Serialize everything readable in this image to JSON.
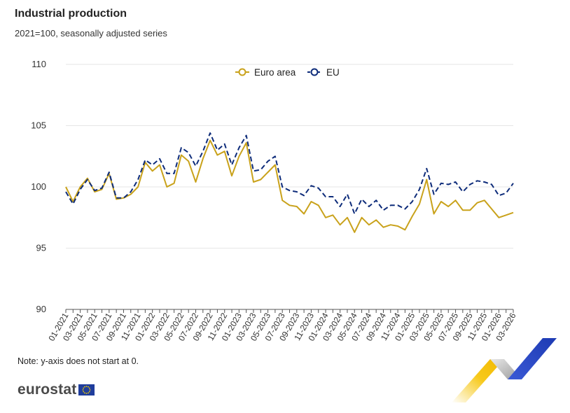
{
  "header": {
    "title": "Industrial production",
    "subtitle": "2021=100, seasonally adjusted series"
  },
  "footer": {
    "note": "Note: y-axis does not start at 0.",
    "brand": "eurostat"
  },
  "colors": {
    "euro_area": "#c9a21b",
    "eu": "#0e2c7a",
    "grid": "#e6e6e6",
    "axis": "#555555"
  },
  "icons": {
    "flag": "eu-flag-icon",
    "corner_decoration": "eurostat-chevron-decoration"
  },
  "chart_data": {
    "type": "line",
    "ylim": [
      90,
      110
    ],
    "y_ticks": [
      "90",
      "95",
      "100",
      "105",
      "110"
    ],
    "grid": true,
    "legend_position": "top-center",
    "x": [
      "01-2021",
      "02-2021",
      "03-2021",
      "04-2021",
      "05-2021",
      "06-2021",
      "07-2021",
      "08-2021",
      "09-2021",
      "10-2021",
      "11-2021",
      "12-2021",
      "01-2022",
      "02-2022",
      "03-2022",
      "04-2022",
      "05-2022",
      "06-2022",
      "07-2022",
      "08-2022",
      "09-2022",
      "10-2022",
      "11-2022",
      "12-2022",
      "01-2023",
      "02-2023",
      "03-2023",
      "04-2023",
      "05-2023",
      "06-2023",
      "07-2023",
      "08-2023",
      "09-2023",
      "10-2023",
      "11-2023",
      "12-2023",
      "01-2024",
      "02-2024",
      "03-2024",
      "04-2024",
      "05-2024",
      "06-2024",
      "07-2024",
      "08-2024",
      "09-2024",
      "10-2024",
      "11-2024",
      "12-2024",
      "01-2025",
      "02-2025",
      "03-2025",
      "04-2025",
      "05-2025",
      "06-2025",
      "07-2025",
      "08-2025",
      "09-2025",
      "10-2025",
      "11-2025",
      "12-2025",
      "01-2026",
      "02-2026",
      "03-2026"
    ],
    "x_tick_labels": [
      "01-2021",
      "03-2021",
      "05-2021",
      "07-2021",
      "09-2021",
      "11-2021",
      "01-2022",
      "03-2022",
      "05-2022",
      "07-2022",
      "09-2022",
      "11-2022",
      "01-2023",
      "03-2023",
      "05-2023",
      "07-2023",
      "09-2023",
      "11-2023",
      "01-2024",
      "03-2024",
      "05-2024",
      "07-2024",
      "09-2024",
      "11-2024",
      "01-2025",
      "03-2025",
      "05-2025",
      "07-2025",
      "09-2025",
      "11-2025",
      "01-2026",
      "03-2026"
    ],
    "series": [
      {
        "name": "Euro area",
        "style": "solid",
        "values": [
          100.0,
          98.8,
          100.0,
          100.7,
          99.6,
          99.8,
          101.1,
          99.0,
          99.1,
          99.4,
          100.0,
          102.0,
          101.3,
          101.8,
          100.0,
          100.3,
          102.6,
          102.1,
          100.4,
          102.3,
          103.8,
          102.6,
          102.9,
          100.9,
          102.5,
          103.6,
          100.4,
          100.6,
          101.2,
          101.8,
          98.9,
          98.5,
          98.4,
          97.8,
          98.8,
          98.5,
          97.5,
          97.7,
          96.9,
          97.5,
          96.3,
          97.5,
          96.9,
          97.3,
          96.7,
          96.9,
          96.8,
          96.5,
          97.6,
          98.6,
          100.6,
          97.8,
          98.8,
          98.4,
          98.9,
          98.1,
          98.1,
          98.7,
          98.9,
          98.2,
          97.5,
          97.7,
          97.9
        ]
      },
      {
        "name": "EU",
        "style": "dashed",
        "values": [
          99.6,
          98.6,
          99.8,
          100.6,
          99.7,
          99.9,
          101.2,
          99.1,
          99.1,
          99.6,
          100.6,
          102.2,
          101.8,
          102.3,
          101.1,
          101.1,
          103.2,
          102.8,
          101.7,
          102.9,
          104.4,
          103.0,
          103.5,
          101.8,
          103.2,
          104.2,
          101.3,
          101.4,
          102.1,
          102.5,
          100.0,
          99.7,
          99.6,
          99.3,
          100.1,
          99.9,
          99.2,
          99.2,
          98.4,
          99.4,
          97.8,
          99.0,
          98.4,
          98.9,
          98.1,
          98.5,
          98.5,
          98.2,
          98.8,
          99.8,
          101.5,
          99.4,
          100.3,
          100.2,
          100.4,
          99.6,
          100.2,
          100.5,
          100.4,
          100.2,
          99.3,
          99.5,
          100.3
        ]
      }
    ]
  }
}
